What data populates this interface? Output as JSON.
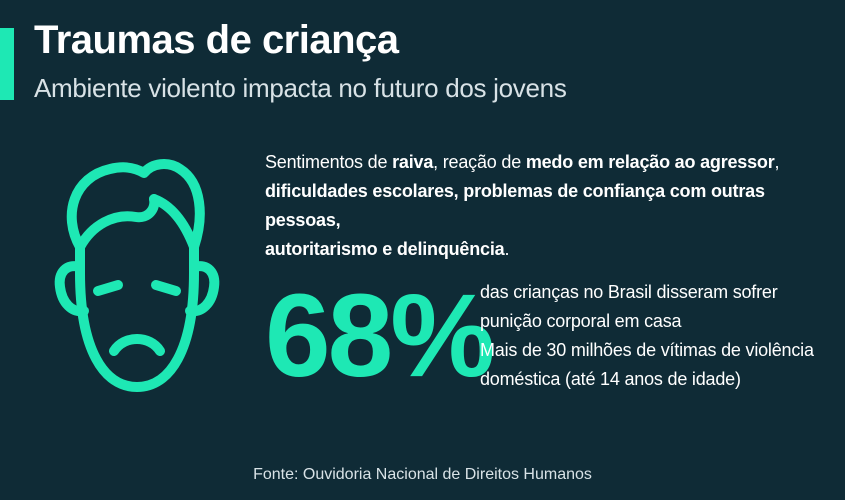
{
  "header": {
    "title": "Traumas de criança",
    "subtitle": "Ambiente violento impacta no futuro dos jovens"
  },
  "feelings": {
    "t1": "Sentimentos de ",
    "b1": "raiva",
    "t2": ", reação de ",
    "b2": "medo em relação ao agressor",
    "t3": ",",
    "b3": "dificuldades escolares, problemas de confiança com outras pessoas,",
    "b4": "autoritarismo e delinquência",
    "t4": "."
  },
  "stat": {
    "value": "68%",
    "line1": "das crianças no Brasil disseram sofrer",
    "line2": "punição corporal em casa",
    "line3": "Mais de 30 milhões de vítimas de violência",
    "line4": "doméstica (até 14 anos de idade)"
  },
  "footer": {
    "source": "Fonte: Ouvidoria Nacional de Direitos Humanos"
  },
  "icons": {
    "face": "sad-face-icon"
  },
  "colors": {
    "background": "#0f2b36",
    "accent": "#1ee8b4",
    "text": "#ffffff"
  }
}
